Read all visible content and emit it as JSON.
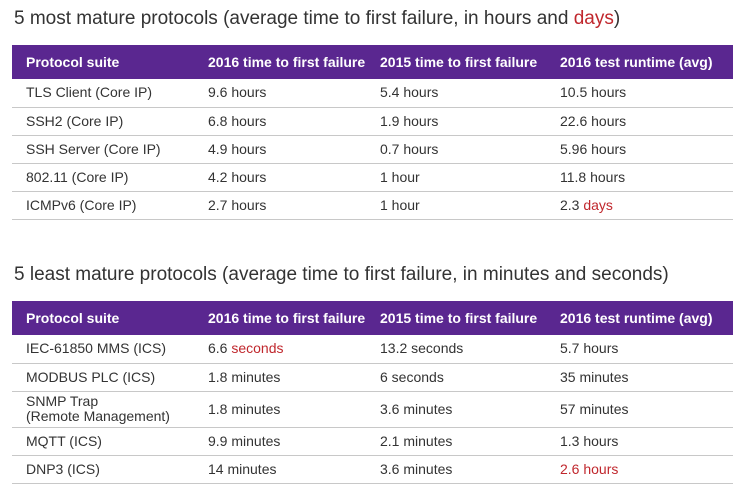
{
  "section1": {
    "title_main": "5 most mature protocols (average time to first failure, in hours and ",
    "title_highlight": "days",
    "title_end": ")",
    "headers": [
      "Protocol suite",
      "2016 time to first failure",
      "2015 time to first failure",
      "2016 test runtime (avg)"
    ],
    "rows": [
      {
        "protocol": "TLS Client (Core IP)",
        "t2016": "9.6 hours",
        "t2015": "5.4 hours",
        "runtime": "10.5 hours"
      },
      {
        "protocol": "SSH2 (Core IP)",
        "t2016": "6.8 hours",
        "t2015": "1.9 hours",
        "runtime": "22.6 hours"
      },
      {
        "protocol": "SSH Server (Core IP)",
        "t2016": "4.9 hours",
        "t2015": "0.7 hours",
        "runtime": "5.96 hours"
      },
      {
        "protocol": "802.11 (Core IP)",
        "t2016": "4.2 hours",
        "t2015": "1 hour",
        "runtime": "11.8 hours"
      },
      {
        "protocol": "ICMPv6 (Core IP)",
        "t2016": "2.7 hours",
        "t2015": "1 hour",
        "runtime_num": "2.3 ",
        "runtime_unit": "days"
      }
    ]
  },
  "section2": {
    "title": "5 least mature protocols (average time to first failure, in minutes and seconds)",
    "headers": [
      "Protocol suite",
      "2016 time to first failure",
      "2015 time to first failure",
      "2016 test runtime (avg)"
    ],
    "rows": [
      {
        "protocol": "IEC-61850 MMS (ICS)",
        "t2016_num": "6.6 ",
        "t2016_unit": "seconds",
        "t2015": "13.2 seconds",
        "runtime": "5.7 hours"
      },
      {
        "protocol": "MODBUS PLC (ICS)",
        "t2016": "1.8 minutes",
        "t2015": "6 seconds",
        "runtime": "35 minutes"
      },
      {
        "protocol_line1": "SNMP Trap",
        "protocol_line2": "(Remote Management)",
        "t2016": "1.8 minutes",
        "t2015": "3.6 minutes",
        "runtime": "57 minutes"
      },
      {
        "protocol": "MQTT (ICS)",
        "t2016": "9.9 minutes",
        "t2015": "2.1 minutes",
        "runtime": "1.3 hours"
      },
      {
        "protocol": "DNP3 (ICS)",
        "t2016": "14 minutes",
        "t2015": "3.6 minutes",
        "runtime": "2.6 hours"
      }
    ]
  },
  "colors": {
    "header_bg": "#5a2790",
    "highlight": "#c0272d",
    "text": "#333333"
  }
}
